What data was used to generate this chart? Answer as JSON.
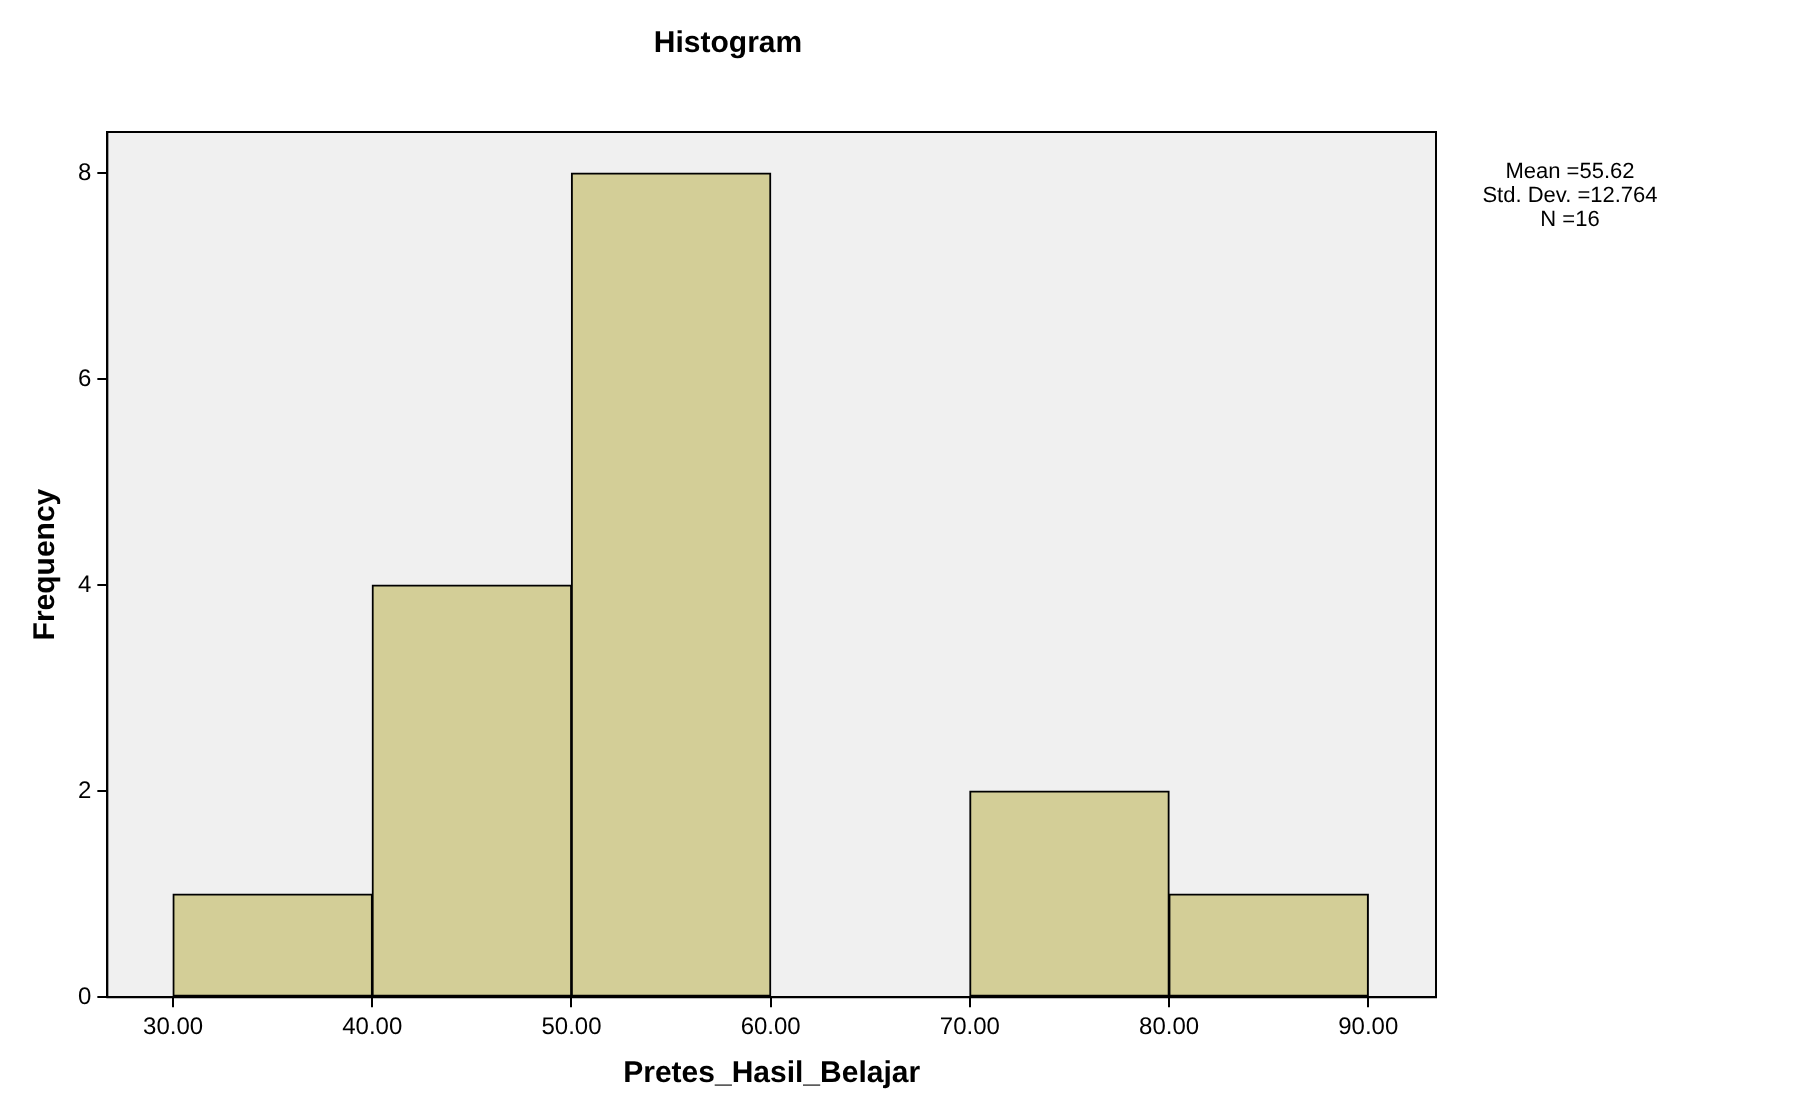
{
  "chart_data": {
    "type": "histogram",
    "title": "Histogram",
    "xlabel": "Pretes_Hasil_Belajar",
    "ylabel": "Frequency",
    "bins": [
      30,
      40,
      50,
      60,
      70,
      80,
      90
    ],
    "values": [
      1,
      4,
      8,
      0,
      2,
      1
    ],
    "color": "#d3ce97",
    "xlim": [
      26.7,
      93.4
    ],
    "xticks": [
      {
        "value": 30,
        "label": "30.00"
      },
      {
        "value": 40,
        "label": "40.00"
      },
      {
        "value": 50,
        "label": "50.00"
      },
      {
        "value": 60,
        "label": "60.00"
      },
      {
        "value": 70,
        "label": "70.00"
      },
      {
        "value": 80,
        "label": "80.00"
      },
      {
        "value": 90,
        "label": "90.00"
      }
    ],
    "ylim": [
      0,
      8.4
    ],
    "yticks": [
      0,
      2,
      4,
      6,
      8
    ],
    "grid": false,
    "annotations": [
      "Mean =55.62",
      "Std. Dev. =12.764",
      "N =16"
    ]
  }
}
